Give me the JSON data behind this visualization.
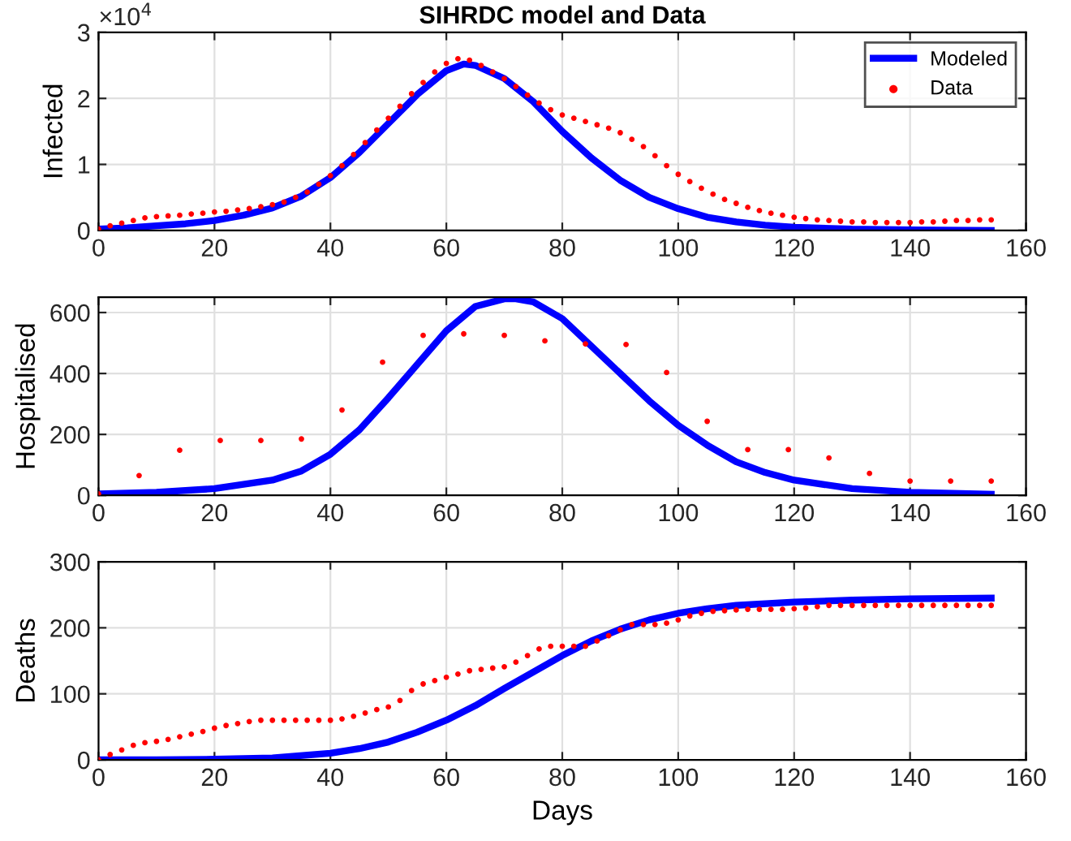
{
  "chart_data": [
    {
      "type": "line",
      "title": "SIHRDC model and Data",
      "ylabel": "Infected",
      "annotations": [
        "×10$^{4}$"
      ],
      "xlim": [
        0,
        160
      ],
      "xticks": [
        0,
        20,
        40,
        60,
        80,
        100,
        120,
        140,
        160
      ],
      "ylim": [
        0,
        3
      ],
      "yticks": [
        0,
        1,
        2,
        3
      ],
      "grid": true,
      "legend": "top right",
      "series": [
        {
          "name": "Modeled",
          "color": "#0000ff",
          "marker": "none",
          "x": [
            0,
            5,
            10,
            15,
            20,
            25,
            30,
            35,
            40,
            45,
            50,
            55,
            60,
            63,
            65,
            70,
            75,
            80,
            85,
            90,
            95,
            100,
            105,
            110,
            115,
            120,
            130,
            140,
            154
          ],
          "values": [
            0.02,
            0.04,
            0.07,
            0.1,
            0.15,
            0.23,
            0.34,
            0.52,
            0.8,
            1.18,
            1.62,
            2.06,
            2.42,
            2.52,
            2.5,
            2.3,
            1.95,
            1.5,
            1.1,
            0.76,
            0.5,
            0.33,
            0.2,
            0.13,
            0.08,
            0.05,
            0.02,
            0.01,
            0
          ]
        },
        {
          "name": "Data",
          "type": "scatter",
          "color": "#ff0000",
          "marker": "circle",
          "x": [
            0,
            2,
            4,
            6,
            8,
            10,
            12,
            14,
            16,
            18,
            20,
            22,
            24,
            26,
            28,
            30,
            32,
            34,
            36,
            38,
            40,
            42,
            44,
            46,
            48,
            50,
            52,
            54,
            56,
            58,
            60,
            62,
            64,
            66,
            68,
            70,
            72,
            74,
            76,
            78,
            80,
            82,
            84,
            86,
            88,
            90,
            92,
            94,
            96,
            98,
            100,
            102,
            104,
            106,
            108,
            110,
            112,
            114,
            116,
            118,
            120,
            122,
            124,
            126,
            128,
            130,
            132,
            134,
            136,
            138,
            140,
            142,
            144,
            146,
            148,
            150,
            152,
            154
          ],
          "values": [
            0.02,
            0.07,
            0.11,
            0.15,
            0.19,
            0.21,
            0.22,
            0.23,
            0.25,
            0.26,
            0.28,
            0.29,
            0.31,
            0.33,
            0.36,
            0.39,
            0.43,
            0.5,
            0.58,
            0.7,
            0.83,
            0.98,
            1.15,
            1.33,
            1.52,
            1.7,
            1.88,
            2.07,
            2.24,
            2.4,
            2.53,
            2.6,
            2.58,
            2.5,
            2.4,
            2.3,
            2.18,
            2.05,
            1.93,
            1.83,
            1.75,
            1.7,
            1.65,
            1.6,
            1.55,
            1.48,
            1.38,
            1.27,
            1.13,
            0.98,
            0.85,
            0.74,
            0.64,
            0.55,
            0.47,
            0.41,
            0.35,
            0.3,
            0.26,
            0.23,
            0.2,
            0.18,
            0.16,
            0.15,
            0.14,
            0.13,
            0.13,
            0.12,
            0.12,
            0.12,
            0.12,
            0.13,
            0.13,
            0.14,
            0.15,
            0.15,
            0.16,
            0.16
          ]
        }
      ]
    },
    {
      "type": "line",
      "ylabel": "Hospitalised",
      "xlim": [
        0,
        160
      ],
      "xticks": [
        0,
        20,
        40,
        60,
        80,
        100,
        120,
        140,
        160
      ],
      "ylim": [
        0,
        650
      ],
      "yticks": [
        0,
        200,
        400,
        600
      ],
      "grid": true,
      "series": [
        {
          "color": "#0000ff",
          "marker": "none",
          "x": [
            0,
            10,
            20,
            30,
            35,
            40,
            45,
            50,
            55,
            60,
            65,
            70,
            72,
            75,
            80,
            85,
            90,
            95,
            100,
            105,
            110,
            115,
            120,
            130,
            140,
            154
          ],
          "values": [
            5,
            10,
            22,
            50,
            80,
            135,
            215,
            320,
            430,
            540,
            620,
            645,
            645,
            635,
            580,
            490,
            400,
            310,
            230,
            165,
            110,
            75,
            50,
            22,
            10,
            4
          ]
        },
        {
          "type": "scatter",
          "color": "#ff0000",
          "marker": "circle",
          "x": [
            0,
            7,
            14,
            21,
            28,
            35,
            42,
            49,
            56,
            63,
            70,
            77,
            84,
            91,
            98,
            105,
            112,
            119,
            126,
            133,
            140,
            147,
            154
          ],
          "values": [
            5,
            65,
            148,
            180,
            180,
            185,
            280,
            437,
            525,
            530,
            525,
            507,
            497,
            495,
            403,
            243,
            150,
            150,
            123,
            72,
            47,
            47,
            47
          ]
        }
      ]
    },
    {
      "type": "line",
      "xlabel": "Days",
      "ylabel": "Deaths",
      "xlim": [
        0,
        160
      ],
      "xticks": [
        0,
        20,
        40,
        60,
        80,
        100,
        120,
        140,
        160
      ],
      "ylim": [
        0,
        300
      ],
      "yticks": [
        0,
        100,
        200,
        300
      ],
      "grid": true,
      "series": [
        {
          "color": "#0000ff",
          "marker": "none",
          "x": [
            0,
            10,
            20,
            30,
            40,
            45,
            50,
            55,
            60,
            65,
            70,
            75,
            80,
            85,
            90,
            95,
            100,
            105,
            110,
            120,
            130,
            140,
            154
          ],
          "values": [
            0,
            0,
            1,
            3,
            10,
            17,
            27,
            42,
            60,
            82,
            108,
            133,
            158,
            180,
            198,
            212,
            222,
            229,
            234,
            239,
            242,
            244,
            245
          ]
        },
        {
          "type": "scatter",
          "color": "#ff0000",
          "marker": "circle",
          "x": [
            0,
            2,
            4,
            6,
            8,
            10,
            12,
            14,
            16,
            18,
            20,
            22,
            24,
            26,
            28,
            30,
            32,
            34,
            36,
            38,
            40,
            42,
            44,
            46,
            48,
            50,
            52,
            54,
            56,
            58,
            60,
            62,
            64,
            66,
            68,
            70,
            72,
            74,
            76,
            78,
            80,
            82,
            84,
            86,
            88,
            90,
            92,
            94,
            96,
            98,
            100,
            102,
            104,
            106,
            108,
            110,
            112,
            114,
            116,
            118,
            120,
            122,
            124,
            126,
            128,
            130,
            132,
            134,
            136,
            138,
            140,
            142,
            144,
            146,
            148,
            150,
            152,
            154
          ],
          "values": [
            0,
            8,
            15,
            22,
            26,
            28,
            31,
            35,
            39,
            43,
            48,
            52,
            55,
            58,
            60,
            60,
            60,
            60,
            60,
            60,
            60,
            62,
            66,
            71,
            76,
            80,
            90,
            105,
            115,
            120,
            125,
            130,
            135,
            137,
            139,
            141,
            148,
            158,
            168,
            172,
            172,
            172,
            172,
            180,
            188,
            197,
            205,
            205,
            205,
            207,
            212,
            218,
            222,
            225,
            226,
            227,
            228,
            228,
            228,
            228,
            229,
            230,
            232,
            234,
            234,
            234,
            234,
            234,
            234,
            234,
            234,
            234,
            234,
            234,
            234,
            234,
            234,
            234
          ]
        }
      ]
    }
  ]
}
